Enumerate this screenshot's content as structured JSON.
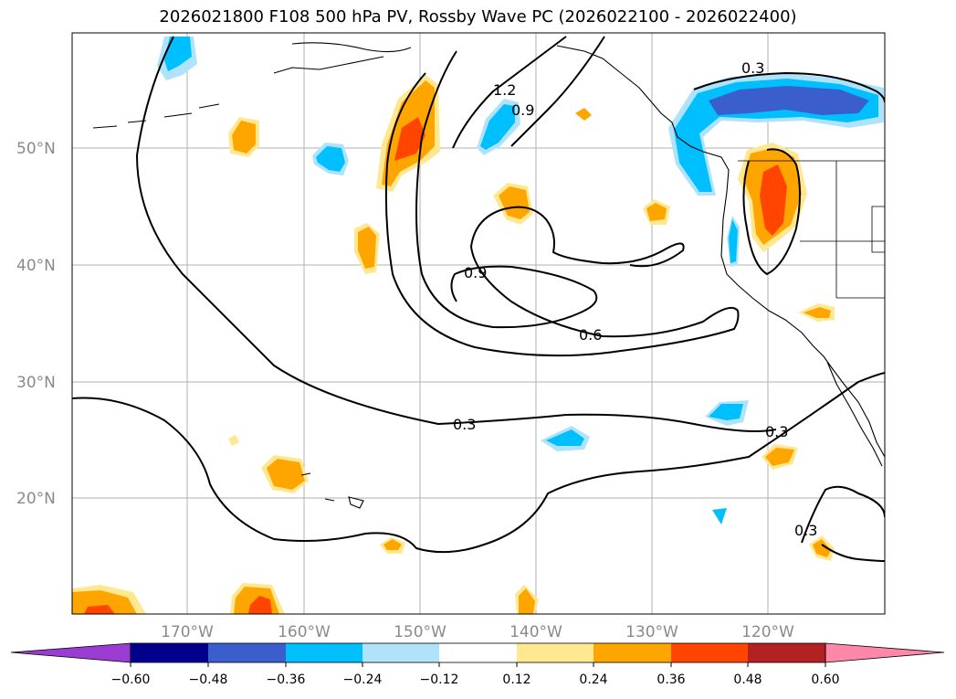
{
  "title": "2026021800 F108 500 hPa PV, Rossby Wave PC (2026022100 - 2026022400)",
  "colors": {
    "neg_060": "#9a3bd1",
    "neg_048": "#00008c",
    "neg_036": "#3a5fcd",
    "neg_024": "#00bfff",
    "neg_012": "#afe3fb",
    "zero": "#ffffff",
    "pos_012": "#ffe88f",
    "pos_024": "#ffa500",
    "pos_036": "#ff4500",
    "pos_048": "#b22222",
    "pos_060": "#ff88aa",
    "grid": "#b0b0b0",
    "coast": "#000000"
  },
  "lat_labels": [
    "50°N",
    "40°N",
    "30°N",
    "20°N"
  ],
  "lon_labels": [
    "170°W",
    "160°W",
    "150°W",
    "140°W",
    "130°W",
    "120°W"
  ],
  "colorbar_ticks": [
    "−0.60",
    "−0.48",
    "−0.36",
    "−0.24",
    "−0.12",
    "0.12",
    "0.24",
    "0.36",
    "0.48",
    "0.60"
  ],
  "contour_labels": [
    "1.2",
    "0.9",
    "0.9",
    "0.6",
    "0.3",
    "0.3",
    "0.3",
    "0.3"
  ]
}
